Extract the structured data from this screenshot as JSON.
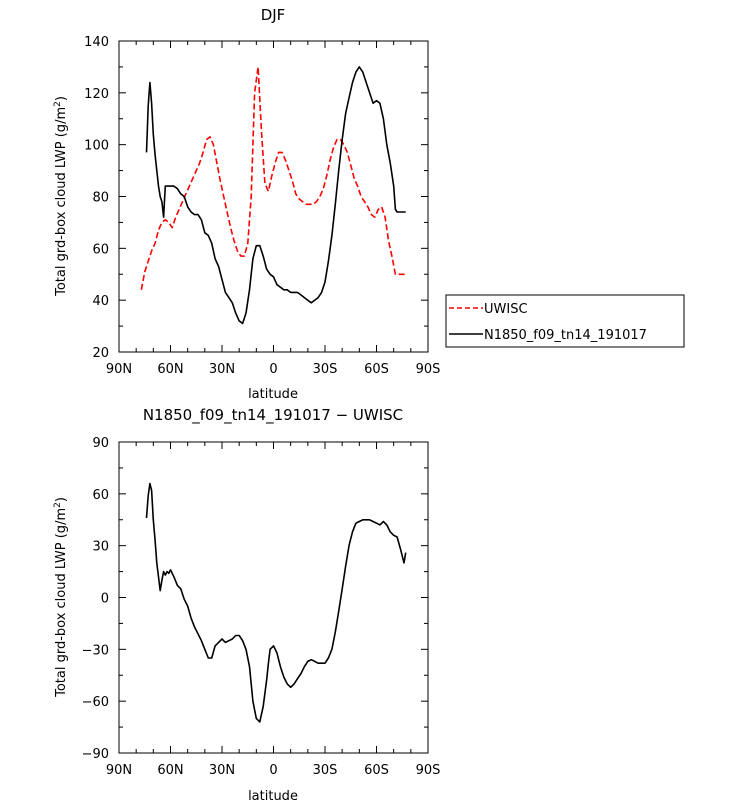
{
  "chart_data": [
    {
      "type": "line",
      "title": "DJF",
      "xlabel": "latitude",
      "ylabel": "Total grd-box cloud LWP (g/m²)",
      "ylabel_main": "Total grd-box cloud LWP (g/m",
      "ylabel_sup": "2",
      "ylabel_end": ")",
      "xlim": [
        90,
        -90
      ],
      "ylim": [
        20,
        140
      ],
      "xticks": [
        90,
        60,
        30,
        0,
        -30,
        -60,
        -90
      ],
      "xtick_labels": [
        "90N",
        "60N",
        "30N",
        "0",
        "30S",
        "60S",
        "90S"
      ],
      "yticks": [
        20,
        40,
        60,
        80,
        100,
        120,
        140
      ],
      "ytick_labels": [
        "20",
        "40",
        "60",
        "80",
        "100",
        "120",
        "140"
      ],
      "legend_position": "right",
      "series": [
        {
          "name": "UWISC",
          "color": "#ff0000",
          "dashed": true,
          "x": [
            77,
            75,
            73,
            71,
            69,
            67,
            65,
            63,
            61,
            59,
            57,
            55,
            53,
            51,
            49,
            47,
            45,
            43,
            41,
            39,
            37,
            35,
            33,
            31,
            29,
            27,
            25,
            23,
            21,
            19,
            17,
            15,
            13,
            11,
            9,
            7,
            5,
            3,
            1,
            -1,
            -3,
            -5,
            -7,
            -9,
            -11,
            -13,
            -15,
            -17,
            -19,
            -21,
            -23,
            -25,
            -27,
            -29,
            -31,
            -33,
            -35,
            -37,
            -39,
            -41,
            -43,
            -45,
            -47,
            -49,
            -51,
            -53,
            -55,
            -57,
            -59,
            -61,
            -63,
            -65,
            -67,
            -69,
            -71,
            -73,
            -75,
            -77
          ],
          "y": [
            44,
            51,
            55,
            59,
            62,
            67,
            70,
            71,
            70,
            68,
            72,
            75,
            78,
            81,
            84,
            87,
            90,
            93,
            97,
            102,
            103,
            100,
            93,
            86,
            80,
            74,
            68,
            63,
            59,
            57,
            57,
            62,
            80,
            120,
            130,
            105,
            85,
            82,
            88,
            93,
            97,
            97,
            94,
            90,
            86,
            81,
            79,
            78,
            77,
            77,
            77,
            78,
            80,
            83,
            88,
            94,
            99,
            102,
            102,
            100,
            97,
            92,
            87,
            84,
            80,
            78,
            76,
            73,
            72,
            75,
            76,
            72,
            63,
            57,
            50,
            50,
            50,
            50
          ]
        },
        {
          "name": "N1850_f09_tn14_191017",
          "color": "#000000",
          "dashed": false,
          "x": [
            74,
            73,
            72,
            71,
            70,
            69,
            68,
            67,
            66,
            65,
            64,
            63,
            62,
            61,
            60,
            58,
            56,
            54,
            52,
            50,
            48,
            46,
            44,
            42,
            40,
            38,
            36,
            34,
            32,
            30,
            28,
            26,
            24,
            22,
            20,
            18,
            16,
            14,
            12,
            10,
            8,
            6,
            4,
            2,
            0,
            -2,
            -4,
            -6,
            -8,
            -10,
            -12,
            -14,
            -16,
            -18,
            -20,
            -22,
            -24,
            -26,
            -28,
            -30,
            -32,
            -34,
            -36,
            -38,
            -40,
            -42,
            -44,
            -46,
            -48,
            -50,
            -52,
            -54,
            -56,
            -58,
            -60,
            -62,
            -64,
            -66,
            -68,
            -70,
            -71,
            -72,
            -73,
            -74,
            -75,
            -76,
            -77
          ],
          "y": [
            97,
            115,
            124,
            116,
            104,
            96,
            90,
            84,
            80,
            78,
            72,
            84,
            84,
            84,
            84,
            84,
            83,
            81,
            80,
            76,
            74,
            73,
            73,
            71,
            66,
            65,
            62,
            56,
            53,
            48,
            43,
            41,
            39,
            35,
            32,
            31,
            35,
            44,
            56,
            61,
            61,
            57,
            52,
            50,
            49,
            46,
            45,
            44,
            44,
            43,
            43,
            43,
            42,
            41,
            40,
            39,
            40,
            41,
            43,
            47,
            55,
            65,
            77,
            90,
            102,
            112,
            118,
            124,
            128,
            130,
            128,
            124,
            120,
            116,
            117,
            116,
            110,
            100,
            93,
            84,
            75,
            74,
            74,
            74,
            74,
            74,
            74
          ]
        }
      ]
    },
    {
      "type": "line",
      "title": "N1850_f09_tn14_191017 − UWISC",
      "xlabel": "latitude",
      "ylabel": "Total grd-box cloud LWP (g/m²)",
      "ylabel_main": "Total grd-box cloud LWP (g/m",
      "ylabel_sup": "2",
      "ylabel_end": ")",
      "xlim": [
        90,
        -90
      ],
      "ylim": [
        -90,
        90
      ],
      "xticks": [
        90,
        60,
        30,
        0,
        -30,
        -60,
        -90
      ],
      "xtick_labels": [
        "90N",
        "60N",
        "30N",
        "0",
        "30S",
        "60S",
        "90S"
      ],
      "yticks": [
        -90,
        -60,
        -30,
        0,
        30,
        60,
        90
      ],
      "ytick_labels": [
        "−90",
        "−60",
        "−30",
        "0",
        "30",
        "60",
        "90"
      ],
      "series": [
        {
          "color": "#000000",
          "dashed": false,
          "x": [
            74,
            73,
            72,
            71,
            70,
            69,
            68,
            67,
            66,
            65,
            64,
            63,
            62,
            61,
            60,
            58,
            56,
            54,
            52,
            50,
            48,
            46,
            44,
            42,
            40,
            38,
            36,
            34,
            32,
            30,
            28,
            26,
            24,
            22,
            20,
            18,
            16,
            14,
            12,
            10,
            8,
            6,
            4,
            3,
            2,
            0,
            -2,
            -4,
            -6,
            -8,
            -10,
            -12,
            -14,
            -16,
            -18,
            -20,
            -22,
            -24,
            -26,
            -28,
            -30,
            -32,
            -34,
            -36,
            -38,
            -40,
            -42,
            -44,
            -46,
            -48,
            -50,
            -52,
            -54,
            -56,
            -58,
            -60,
            -62,
            -64,
            -66,
            -68,
            -70,
            -72,
            -74,
            -76,
            -77
          ],
          "y": [
            46,
            59,
            66,
            62,
            45,
            33,
            20,
            12,
            4,
            10,
            15,
            13,
            15,
            14,
            16,
            12,
            7,
            5,
            -1,
            -5,
            -12,
            -17,
            -21,
            -25,
            -30,
            -35,
            -35,
            -28,
            -26,
            -24,
            -26,
            -25,
            -24,
            -22,
            -22,
            -25,
            -30,
            -40,
            -60,
            -70,
            -72,
            -63,
            -48,
            -38,
            -30,
            -28,
            -32,
            -40,
            -46,
            -50,
            -52,
            -50,
            -47,
            -44,
            -40,
            -37,
            -36,
            -37,
            -38,
            -38,
            -38,
            -35,
            -30,
            -20,
            -8,
            5,
            18,
            30,
            38,
            43,
            44,
            45,
            45,
            45,
            44,
            43,
            42,
            44,
            42,
            38,
            36,
            35,
            28,
            20,
            26
          ]
        }
      ]
    }
  ]
}
